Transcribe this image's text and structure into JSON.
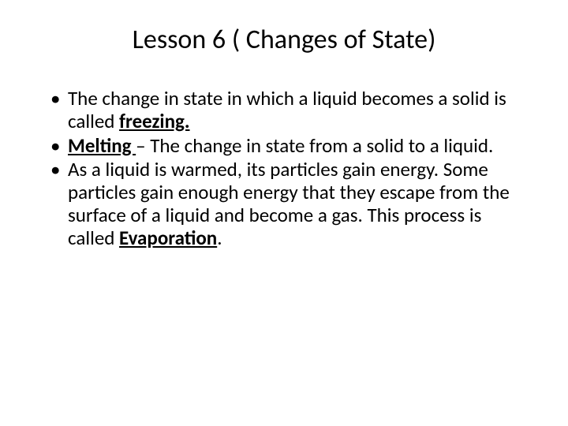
{
  "title": "Lesson 6 ( Changes of State)",
  "bullets": [
    {
      "pre": "The change in state in which a liquid becomes a solid is called ",
      "term": "freezing.",
      "post": ""
    },
    {
      "pre": "",
      "term": "Melting ",
      "post": "– The change in state from a solid to a liquid."
    },
    {
      "pre": "As a liquid is warmed, its particles gain energy.  Some particles gain enough energy that they escape from the surface of a liquid and become a gas.  This process is called ",
      "term": "Evaporation",
      "post": "."
    }
  ],
  "style": {
    "background_color": "#ffffff",
    "text_color": "#000000",
    "title_fontsize": 34,
    "body_fontsize": 25,
    "font_family": "Calibri"
  }
}
